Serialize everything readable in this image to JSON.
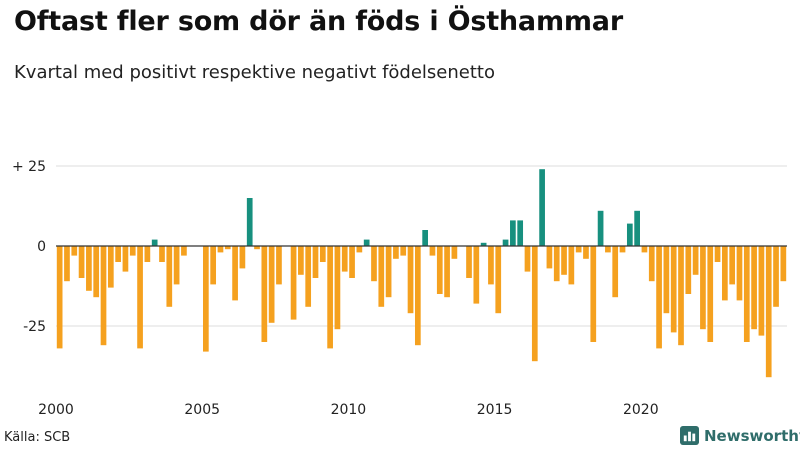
{
  "colors": {
    "positive": "#17907f",
    "negative": "#f5a11f",
    "grid": "#dddddd",
    "text": "#222222",
    "brand": "#2f6d6a"
  },
  "source": "Källa: SCB",
  "brand": {
    "name": "Newsworthy",
    "icon": "bar-chart-icon"
  },
  "chart_data": {
    "type": "bar",
    "title": "Oftast fler som dör än föds i Östhammar",
    "subtitle": "Kvartal med positivt respektive negativt födelsenetto",
    "xlabel": "",
    "ylabel": "",
    "ylim": [
      -42,
      28
    ],
    "yticks": [
      {
        "value": 25,
        "label": "+ 25"
      },
      {
        "value": 0,
        "label": "0"
      },
      {
        "value": -25,
        "label": "-25"
      }
    ],
    "xticks": [
      {
        "index": 0,
        "label": "2000"
      },
      {
        "index": 20,
        "label": "2005"
      },
      {
        "index": 40,
        "label": "2010"
      },
      {
        "index": 60,
        "label": "2015"
      },
      {
        "index": 80,
        "label": "2020"
      }
    ],
    "categories": [
      "2000 K1",
      "2000 K2",
      "2000 K3",
      "2000 K4",
      "2001 K1",
      "2001 K2",
      "2001 K3",
      "2001 K4",
      "2002 K1",
      "2002 K2",
      "2002 K3",
      "2002 K4",
      "2003 K1",
      "2003 K2",
      "2003 K3",
      "2003 K4",
      "2004 K1",
      "2004 K2",
      "2004 K3",
      "2004 K4",
      "2005 K1",
      "2005 K2",
      "2005 K3",
      "2005 K4",
      "2006 K1",
      "2006 K2",
      "2006 K3",
      "2006 K4",
      "2007 K1",
      "2007 K2",
      "2007 K3",
      "2007 K4",
      "2008 K1",
      "2008 K2",
      "2008 K3",
      "2008 K4",
      "2009 K1",
      "2009 K2",
      "2009 K3",
      "2009 K4",
      "2010 K1",
      "2010 K2",
      "2010 K3",
      "2010 K4",
      "2011 K1",
      "2011 K2",
      "2011 K3",
      "2011 K4",
      "2012 K1",
      "2012 K2",
      "2012 K3",
      "2012 K4",
      "2013 K1",
      "2013 K2",
      "2013 K3",
      "2013 K4",
      "2014 K1",
      "2014 K2",
      "2014 K3",
      "2014 K4",
      "2015 K1",
      "2015 K2",
      "2015 K3",
      "2015 K4",
      "2016 K1",
      "2016 K2",
      "2016 K3",
      "2016 K4",
      "2017 K1",
      "2017 K2",
      "2017 K3",
      "2017 K4",
      "2018 K1",
      "2018 K2",
      "2018 K3",
      "2018 K4",
      "2019 K1",
      "2019 K2",
      "2019 K3",
      "2019 K4",
      "2020 K1",
      "2020 K2",
      "2020 K3",
      "2020 K4",
      "2021 K1",
      "2021 K2",
      "2021 K3",
      "2021 K4",
      "2022 K1",
      "2022 K2",
      "2022 K3",
      "2022 K4",
      "2023 K1",
      "2023 K2",
      "2023 K3",
      "2023 K4",
      "2024 K1",
      "2024 K2",
      "2024 K3",
      "2024 K4"
    ],
    "values": [
      -32,
      -11,
      -3,
      -10,
      -14,
      -16,
      -31,
      -13,
      -5,
      -8,
      -3,
      -32,
      -5,
      2,
      -5,
      -19,
      -12,
      -3,
      0,
      0,
      -33,
      -12,
      -2,
      -1,
      -17,
      -7,
      15,
      -1,
      -30,
      -24,
      -12,
      0,
      -23,
      -9,
      -19,
      -10,
      -5,
      -32,
      -26,
      -8,
      -10,
      -2,
      2,
      -11,
      -19,
      -16,
      -4,
      -3,
      -21,
      -31,
      5,
      -3,
      -15,
      -16,
      -4,
      0,
      -10,
      -18,
      1,
      -12,
      -21,
      2,
      8,
      8,
      -8,
      -36,
      24,
      -7,
      -11,
      -9,
      -12,
      -2,
      -4,
      -30,
      11,
      -2,
      -16,
      -2,
      7,
      11,
      -2,
      -11,
      -32,
      -21,
      -27,
      -31,
      -15,
      -9,
      -26,
      -30,
      -5,
      -17,
      -12,
      -17,
      -30,
      -26,
      -28,
      -41,
      -19,
      -11
    ]
  }
}
